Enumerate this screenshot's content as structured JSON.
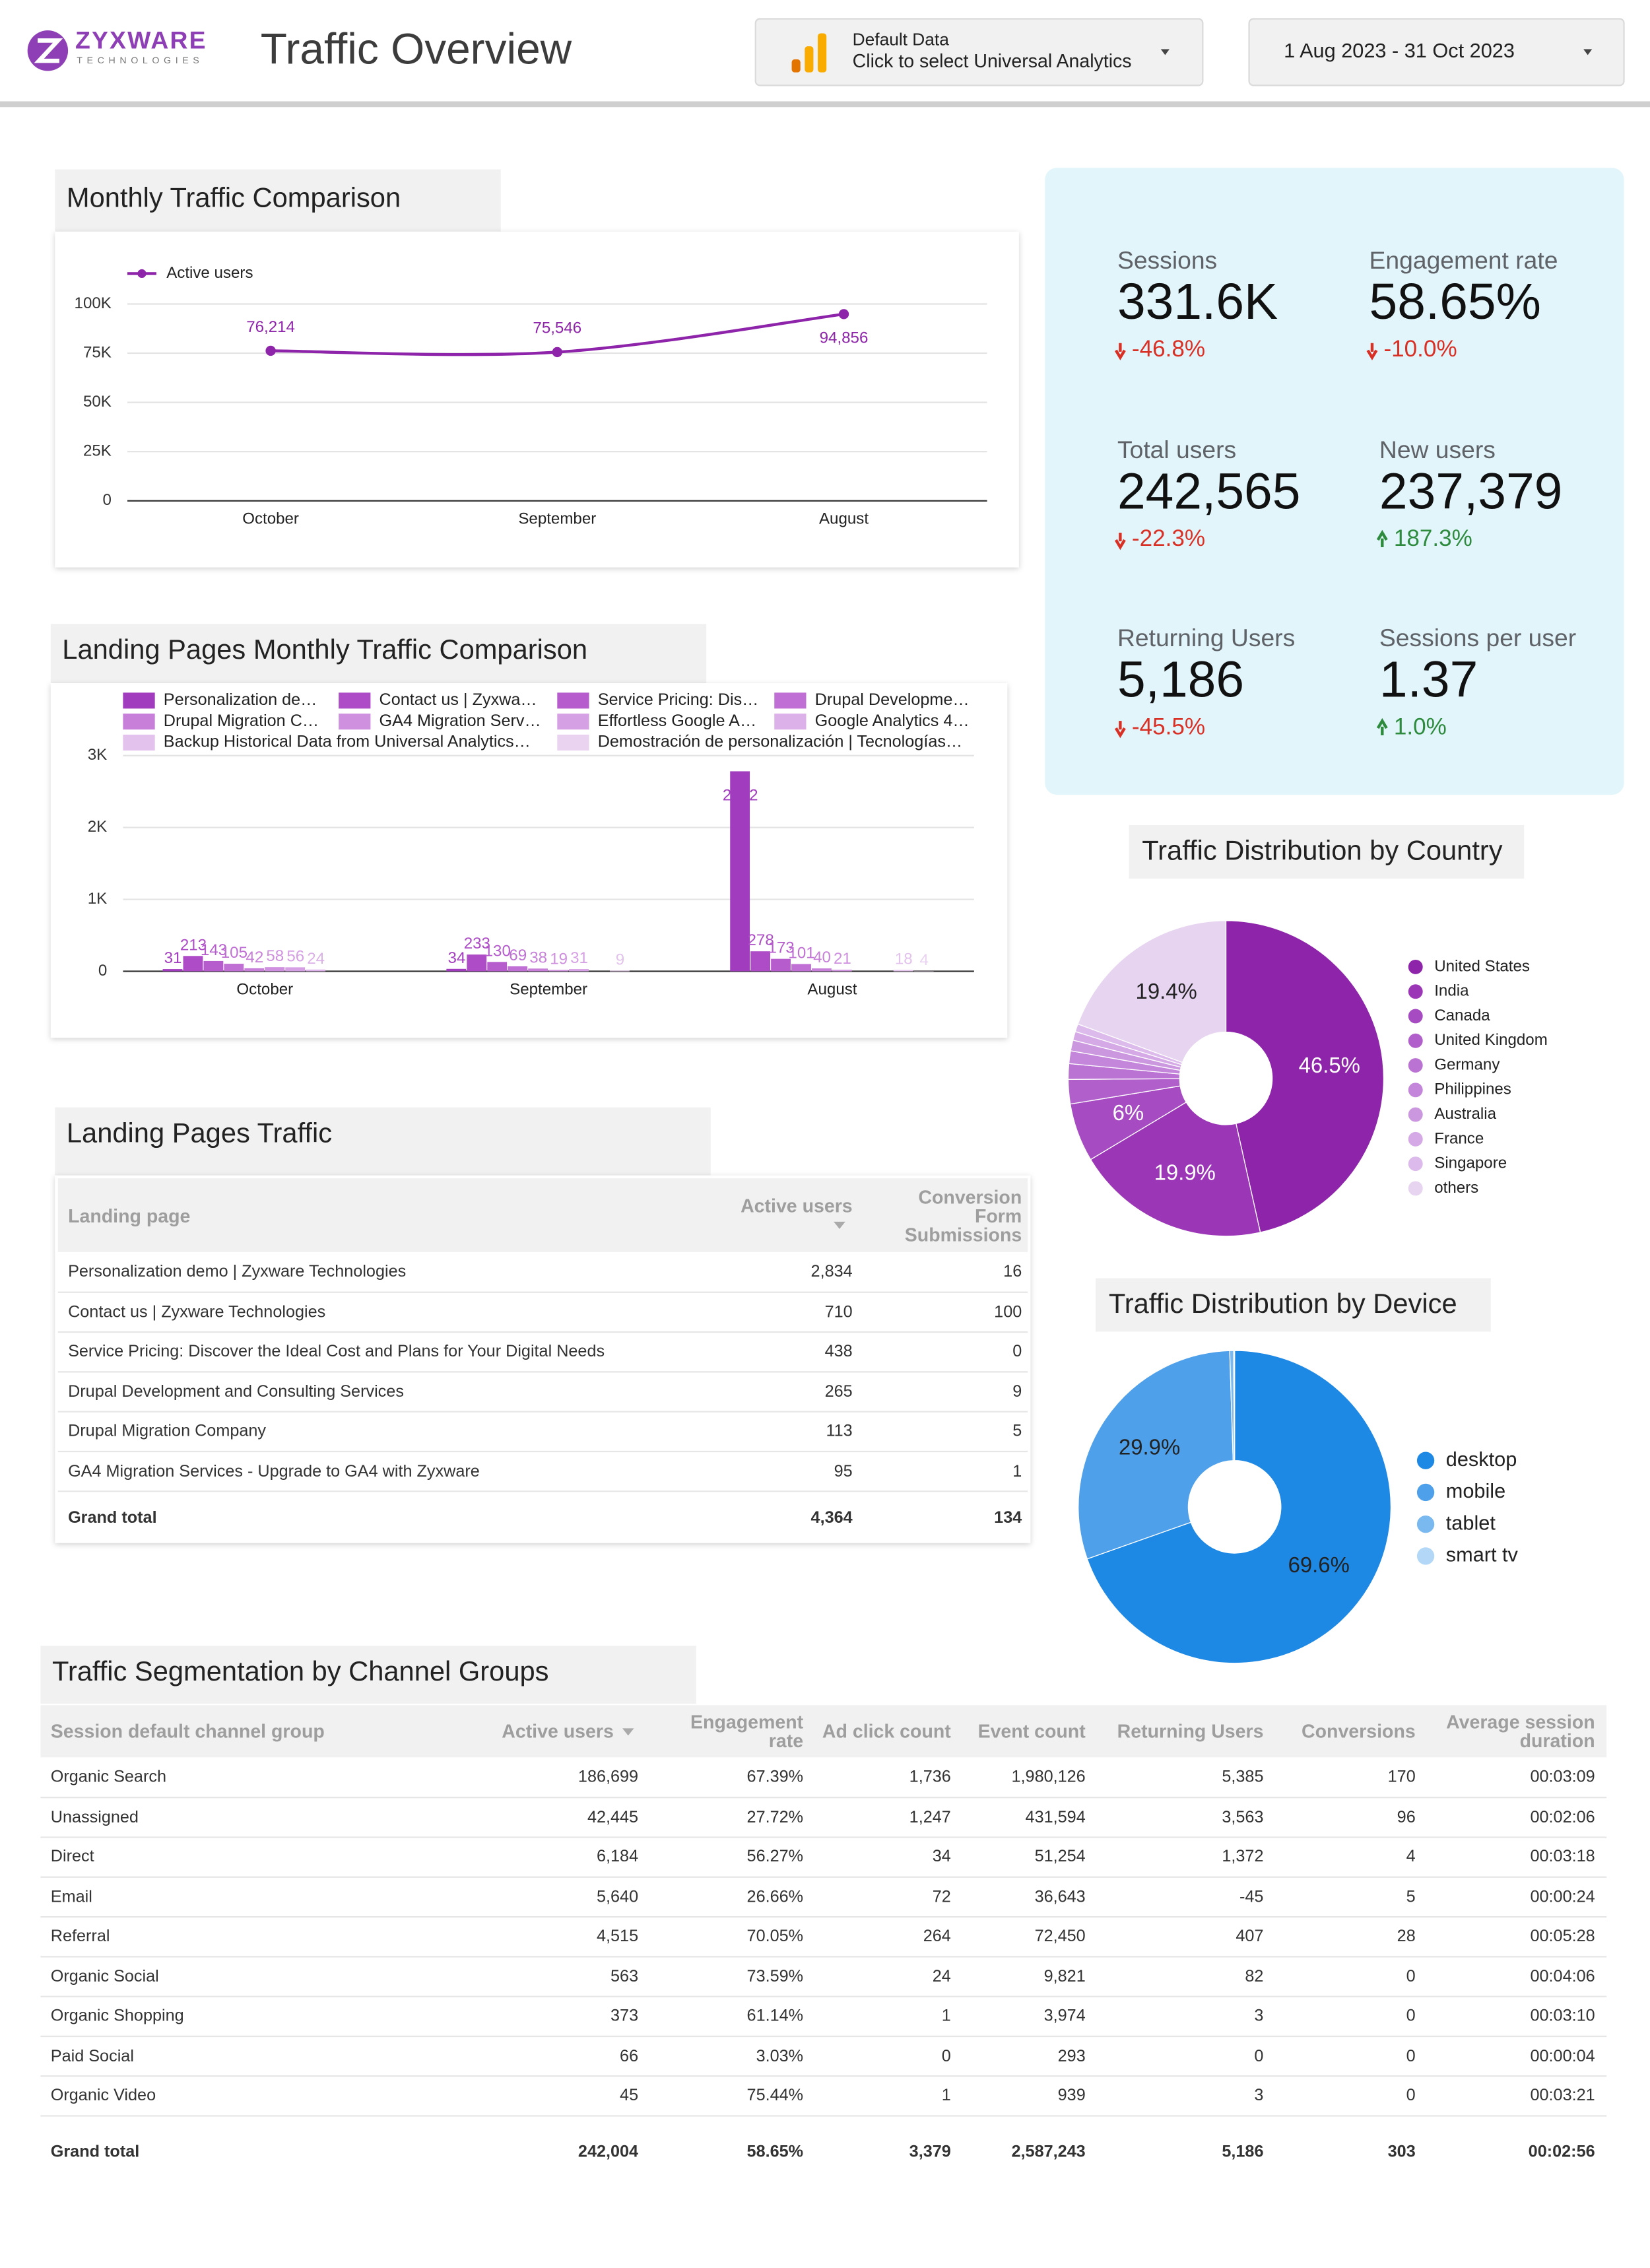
{
  "header": {
    "logo": "ZYXWARE",
    "logo_subtitle": "TECHNOLOGIES",
    "title": "Traffic Overview",
    "data_source_label": "Default Data",
    "data_source_action": "Click to select Universal Analytics",
    "date_range": "1 Aug 2023 - 31 Oct 2023"
  },
  "scorecards": [
    {
      "label": "Sessions",
      "value": "331.6K",
      "change": "-46.8%"
    },
    {
      "label": "Engagement rate",
      "value": "58.65%",
      "change": "-10.0%"
    },
    {
      "label": "Total users",
      "value": "242,565",
      "change": "-22.3%"
    },
    {
      "label": "New users",
      "value": "237,379",
      "change": "187.3%"
    },
    {
      "label": "Returning Users",
      "value": "5,186",
      "change": "-45.5%"
    },
    {
      "label": "Sessions per user",
      "value": "1.37",
      "change": "1.0%"
    }
  ],
  "chart_data": [
    {
      "type": "line",
      "title": "Monthly Traffic Comparison",
      "categories": [
        "October",
        "September",
        "August"
      ],
      "series": [
        {
          "name": "Active users",
          "color": "#8e24aa",
          "values": [
            76214,
            75546,
            94856
          ],
          "value_labels": [
            "76,214",
            "75,546",
            "94,856"
          ]
        }
      ],
      "ylim": [
        0,
        100000
      ],
      "yticks": [
        0,
        {
          "value": 25000,
          "label": "25K"
        },
        {
          "value": 50000,
          "label": "50K"
        },
        {
          "value": 75000,
          "label": "75K"
        },
        {
          "value": 100000,
          "label": "100K"
        }
      ],
      "grid": true
    },
    {
      "type": "bar",
      "title": "Landing Pages Monthly Traffic Comparison",
      "categories": [
        "October",
        "September",
        "August"
      ],
      "series": [
        {
          "name": "Personalization de…",
          "color": "#a23cbe",
          "values": [
            31,
            34,
            2782
          ]
        },
        {
          "name": "Contact us | Zyxwa…",
          "color": "#ad4cc6",
          "values": [
            213,
            233,
            278
          ]
        },
        {
          "name": "Service Pricing: Dis…",
          "color": "#b65ccd",
          "values": [
            143,
            130,
            173
          ]
        },
        {
          "name": "Drupal Developme…",
          "color": "#c06fd4",
          "values": [
            105,
            69,
            101
          ]
        },
        {
          "name": "Drupal Migration C…",
          "color": "#c77fd9",
          "values": [
            42,
            38,
            40
          ]
        },
        {
          "name": "GA4 Migration Serv…",
          "color": "#cf90df",
          "values": [
            58,
            19,
            21
          ]
        },
        {
          "name": "Effortless Google A…",
          "color": "#d6a0e4",
          "values": [
            56,
            31,
            null
          ]
        },
        {
          "name": "Google Analytics 4…",
          "color": "#dcb0e8",
          "values": [
            24,
            null,
            null
          ]
        },
        {
          "name": "Backup Historical Data from Universal Analytics…",
          "color": "#e3c2ed",
          "values": [
            null,
            9,
            18
          ]
        },
        {
          "name": "Demostración de personalización | Tecnologías…",
          "color": "#ead3f1",
          "values": [
            null,
            null,
            4
          ]
        }
      ],
      "ylim": [
        0,
        3000
      ],
      "yticks": [
        0,
        {
          "value": 1000,
          "label": "1K"
        },
        {
          "value": 2000,
          "label": "2K"
        },
        {
          "value": 3000,
          "label": "3K"
        }
      ],
      "grid": true
    },
    {
      "type": "pie",
      "title": "Traffic Distribution by Country",
      "categories": [
        "United States",
        "India",
        "Canada",
        "United Kingdom",
        "Germany",
        "Philippines",
        "Australia",
        "France",
        "Singapore",
        "others"
      ],
      "values": [
        46.5,
        19.9,
        6,
        2.5,
        1.6,
        1.3,
        1.1,
        0.9,
        0.8,
        19.4
      ],
      "value_labels": [
        "46.5%",
        "19.9%",
        "6%",
        null,
        null,
        null,
        null,
        null,
        null,
        "19.4%"
      ],
      "value_label_colors": [
        "#ffffff",
        "#ffffff",
        "#ffffff",
        null,
        null,
        null,
        null,
        null,
        null,
        "#222222"
      ],
      "colors": [
        "#8e24aa",
        "#9b36b7",
        "#a64bc2",
        "#b05fcb",
        "#ba73d3",
        "#c386da",
        "#cb98e0",
        "#d4a9e6",
        "#dcbaeb",
        "#e7d4f0"
      ]
    },
    {
      "type": "pie",
      "title": "Traffic Distribution by Device",
      "categories": [
        "desktop",
        "mobile",
        "tablet",
        "smart tv"
      ],
      "values": [
        69.6,
        29.9,
        0.4,
        0.1
      ],
      "value_labels": [
        "69.6%",
        "29.9%",
        null,
        null
      ],
      "value_label_colors": [
        "#222222",
        "#222222",
        null,
        null
      ],
      "colors": [
        "#1e88e5",
        "#4fa0ea",
        "#7ab8f0",
        "#b3d7f7"
      ]
    }
  ],
  "landing_table": {
    "title": "Landing Pages Traffic",
    "columns": [
      "Landing page",
      "Active users",
      "Conversion Form Submissions"
    ],
    "rows": [
      [
        "Personalization demo | Zyxware Technologies",
        "2,834",
        "16"
      ],
      [
        "Contact us | Zyxware Technologies",
        "710",
        "100"
      ],
      [
        "Service Pricing: Discover the Ideal Cost and Plans for Your Digital Needs",
        "438",
        "0"
      ],
      [
        "Drupal Development and Consulting Services",
        "265",
        "9"
      ],
      [
        "Drupal Migration Company",
        "113",
        "5"
      ],
      [
        "GA4 Migration Services - Upgrade to GA4 with Zyxware",
        "95",
        "1"
      ]
    ],
    "total": [
      "Grand total",
      "4,364",
      "134"
    ]
  },
  "channel_table": {
    "title": "Traffic Segmentation by Channel Groups",
    "columns": [
      "Session default channel group",
      "Active users",
      "Engagement rate",
      "Ad click count",
      "Event count",
      "Returning Users",
      "Conversions",
      "Average session duration"
    ],
    "rows": [
      [
        "Organic Search",
        "186,699",
        "67.39%",
        "1,736",
        "1,980,126",
        "5,385",
        "170",
        "00:03:09"
      ],
      [
        "Unassigned",
        "42,445",
        "27.72%",
        "1,247",
        "431,594",
        "3,563",
        "96",
        "00:02:06"
      ],
      [
        "Direct",
        "6,184",
        "56.27%",
        "34",
        "51,254",
        "1,372",
        "4",
        "00:03:18"
      ],
      [
        "Email",
        "5,640",
        "26.66%",
        "72",
        "36,643",
        "-45",
        "5",
        "00:00:24"
      ],
      [
        "Referral",
        "4,515",
        "70.05%",
        "264",
        "72,450",
        "407",
        "28",
        "00:05:28"
      ],
      [
        "Organic Social",
        "563",
        "73.59%",
        "24",
        "9,821",
        "82",
        "0",
        "00:04:06"
      ],
      [
        "Organic Shopping",
        "373",
        "61.14%",
        "1",
        "3,974",
        "3",
        "0",
        "00:03:10"
      ],
      [
        "Paid Social",
        "66",
        "3.03%",
        "0",
        "293",
        "0",
        "0",
        "00:00:04"
      ],
      [
        "Organic Video",
        "45",
        "75.44%",
        "1",
        "939",
        "3",
        "0",
        "00:03:21"
      ]
    ],
    "total": [
      "Grand total",
      "242,004",
      "58.65%",
      "3,379",
      "2,587,243",
      "5,186",
      "303",
      "00:02:56"
    ]
  }
}
